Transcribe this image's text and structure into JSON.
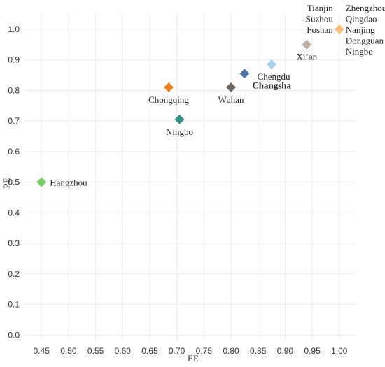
{
  "chart_data": {
    "type": "scatter",
    "xlabel": "EE",
    "ylabel": "PE",
    "xlim": [
      0.42,
      1.03
    ],
    "ylim": [
      -0.02,
      1.05
    ],
    "xticks": [
      "0.45",
      "0.50",
      "0.55",
      "0.60",
      "0.65",
      "0.70",
      "0.75",
      "0.80",
      "0.85",
      "0.90",
      "0.95",
      "1.00"
    ],
    "yticks": [
      "0.0",
      "0.1",
      "0.2",
      "0.3",
      "0.4",
      "0.5",
      "0.6",
      "0.7",
      "0.8",
      "0.9",
      "1.0"
    ],
    "grid": true,
    "marker": "diamond",
    "points": [
      {
        "x": 0.45,
        "y": 0.5,
        "color": "#7dcc6b",
        "labels": [
          "Hangzhou"
        ],
        "label_pos": "right"
      },
      {
        "x": 0.685,
        "y": 0.81,
        "color": "#f07f22",
        "labels": [
          "Chongqing"
        ],
        "label_pos": "below"
      },
      {
        "x": 0.705,
        "y": 0.705,
        "color": "#3a8f87",
        "labels": [
          "Ningbo"
        ],
        "label_pos": "below"
      },
      {
        "x": 0.8,
        "y": 0.81,
        "color": "#6f6862",
        "labels": [
          "Wuhan"
        ],
        "label_pos": "below"
      },
      {
        "x": 0.825,
        "y": 0.855,
        "color": "#4a72a6",
        "labels": [
          "Changsha"
        ],
        "label_pos": "below-right-bold"
      },
      {
        "x": 0.875,
        "y": 0.885,
        "color": "#a8d0ee",
        "labels": [
          "Chengdu"
        ],
        "label_pos": "below-left"
      },
      {
        "x": 0.94,
        "y": 0.95,
        "color": "#bdb2aa",
        "labels": [
          "Xi’an"
        ],
        "label_pos": "below"
      },
      {
        "x": 1.0,
        "y": 1.0,
        "color": "#f8c07e",
        "labels": [
          "Tianjin",
          "Suzhou",
          "Foshan"
        ],
        "label_pos": "left-stack"
      },
      {
        "x": 1.0,
        "y": 1.0,
        "color": "#f8c07e",
        "labels": [
          "Zhengzhou",
          "Qingdao",
          "Nanjing",
          "Dongguan",
          "Ningbo"
        ],
        "label_pos": "right-stack"
      }
    ]
  }
}
